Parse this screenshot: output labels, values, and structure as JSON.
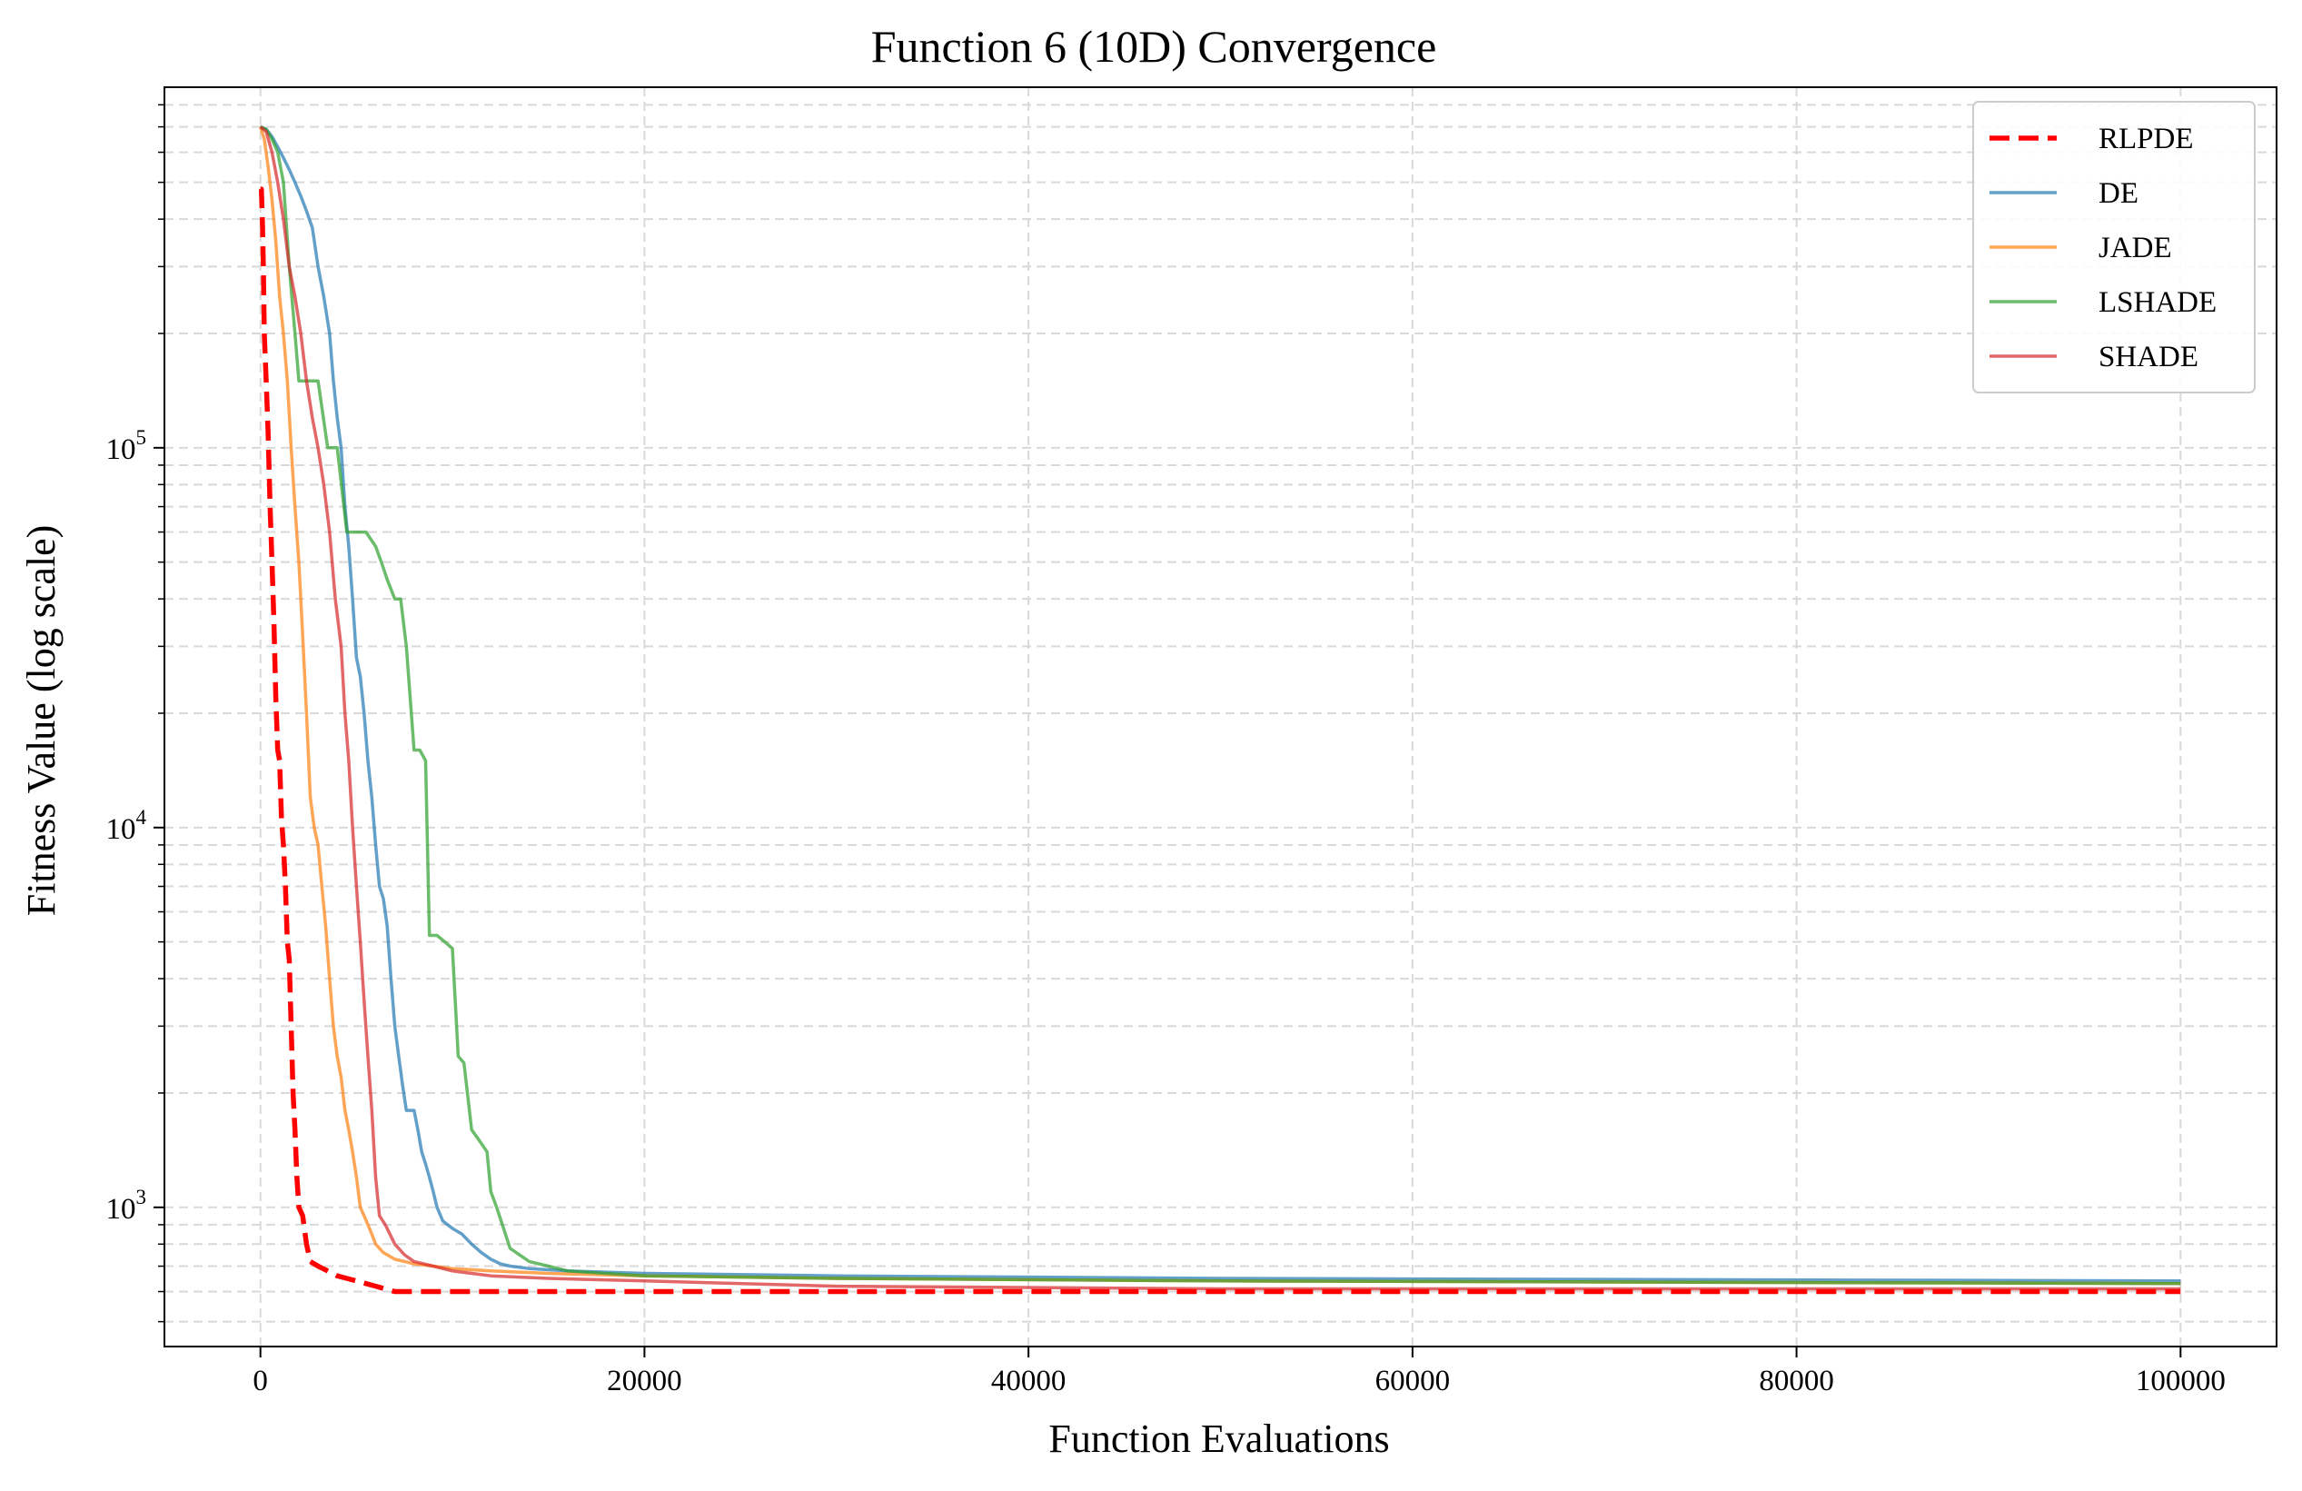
{
  "chart_data": {
    "type": "line",
    "title": "Function 6 (10D) Convergence",
    "xlabel": "Function Evaluations",
    "ylabel": "Fitness Value (log scale)",
    "xlim": [
      -5000,
      105000
    ],
    "ylim": [
      430,
      890000
    ],
    "y_scale": "log",
    "grid": true,
    "legend_position": "top-right",
    "x_ticks": [
      0,
      20000,
      40000,
      60000,
      80000,
      100000
    ],
    "x_tick_labels": [
      "0",
      "20000",
      "40000",
      "60000",
      "80000",
      "100000"
    ],
    "y_ticks": [
      1000,
      10000,
      100000
    ],
    "y_tick_labels": [
      {
        "base": "10",
        "exp": "3"
      },
      {
        "base": "10",
        "exp": "4"
      },
      {
        "base": "10",
        "exp": "5"
      }
    ],
    "series": [
      {
        "name": "RLPDE",
        "color": "#ff0000",
        "dashed": true,
        "x": [
          0,
          50,
          100,
          150,
          200,
          300,
          400,
          500,
          600,
          700,
          800,
          900,
          1000,
          1100,
          1200,
          1300,
          1400,
          1500,
          1600,
          1700,
          1800,
          1900,
          2000,
          2200,
          2400,
          2600,
          2800,
          3000,
          3500,
          4000,
          4500,
          5000,
          6000,
          7000,
          8000,
          10000,
          20000,
          40000,
          60000,
          80000,
          100000
        ],
        "y": [
          480000,
          480000,
          400000,
          300000,
          200000,
          150000,
          110000,
          70000,
          50000,
          35000,
          22000,
          16000,
          15000,
          10500,
          9000,
          7000,
          5000,
          4500,
          3000,
          2000,
          1600,
          1200,
          1000,
          950,
          800,
          720,
          710,
          700,
          680,
          660,
          650,
          640,
          620,
          600,
          600,
          600,
          600,
          600,
          600,
          600,
          600
        ]
      },
      {
        "name": "DE",
        "color": "#1f77b4",
        "dashed": false,
        "x": [
          0,
          300,
          600,
          900,
          1200,
          1500,
          1800,
          2100,
          2400,
          2700,
          3000,
          3300,
          3600,
          3800,
          4000,
          4200,
          4400,
          4600,
          4800,
          5000,
          5200,
          5400,
          5600,
          5800,
          6000,
          6200,
          6400,
          6600,
          6800,
          7000,
          7200,
          7400,
          7600,
          7800,
          8000,
          8200,
          8400,
          8600,
          8800,
          9000,
          9200,
          9500,
          10000,
          10500,
          11000,
          11500,
          12000,
          12500,
          13000,
          14000,
          16000,
          20000,
          30000,
          50000,
          100000
        ],
        "y": [
          700000,
          690000,
          660000,
          620000,
          580000,
          540000,
          500000,
          460000,
          420000,
          380000,
          300000,
          250000,
          200000,
          150000,
          120000,
          100000,
          70000,
          55000,
          40000,
          28000,
          25000,
          20000,
          15000,
          12000,
          9000,
          7000,
          6500,
          5500,
          4000,
          3000,
          2500,
          2100,
          1800,
          1800,
          1800,
          1600,
          1400,
          1300,
          1200,
          1100,
          1000,
          920,
          880,
          850,
          800,
          760,
          730,
          710,
          700,
          690,
          680,
          670,
          660,
          650,
          640
        ]
      },
      {
        "name": "JADE",
        "color": "#ff7f0e",
        "dashed": false,
        "x": [
          0,
          200,
          400,
          600,
          800,
          1000,
          1200,
          1400,
          1600,
          1800,
          2000,
          2200,
          2400,
          2600,
          2800,
          3000,
          3200,
          3400,
          3600,
          3800,
          4000,
          4200,
          4400,
          4600,
          4800,
          5000,
          5200,
          5400,
          5600,
          5800,
          6000,
          6200,
          6400,
          6600,
          6800,
          7000,
          7500,
          8000,
          9000,
          10000,
          12000,
          15000,
          20000,
          30000,
          50000,
          100000
        ],
        "y": [
          700000,
          650000,
          550000,
          450000,
          350000,
          250000,
          200000,
          150000,
          100000,
          70000,
          50000,
          32000,
          20000,
          12000,
          10000,
          9000,
          7000,
          5500,
          4000,
          3000,
          2500,
          2200,
          1800,
          1600,
          1400,
          1200,
          1000,
          950,
          900,
          850,
          800,
          780,
          760,
          750,
          740,
          730,
          720,
          710,
          700,
          690,
          680,
          670,
          660,
          650,
          640,
          630
        ]
      },
      {
        "name": "LSHADE",
        "color": "#2ca02c",
        "dashed": false,
        "x": [
          0,
          300,
          600,
          900,
          1200,
          1500,
          1800,
          2000,
          2500,
          3000,
          3500,
          4000,
          4500,
          5000,
          5500,
          6000,
          6300,
          6600,
          7000,
          7300,
          7600,
          8000,
          8300,
          8600,
          8800,
          9000,
          9200,
          9600,
          10000,
          10300,
          10600,
          11000,
          11400,
          11800,
          12000,
          12300,
          12600,
          13000,
          14000,
          15000,
          16000,
          18000,
          20000,
          30000,
          50000,
          100000
        ],
        "y": [
          700000,
          690000,
          650000,
          600000,
          500000,
          300000,
          200000,
          150000,
          150000,
          150000,
          100000,
          100000,
          60000,
          60000,
          60000,
          55000,
          50000,
          45000,
          40000,
          40000,
          30000,
          16000,
          16000,
          15000,
          5200,
          5200,
          5200,
          5000,
          4800,
          2500,
          2400,
          1600,
          1500,
          1400,
          1100,
          1000,
          900,
          780,
          720,
          700,
          680,
          670,
          660,
          650,
          640,
          630
        ]
      },
      {
        "name": "SHADE",
        "color": "#d62728",
        "dashed": false,
        "x": [
          0,
          300,
          600,
          900,
          1200,
          1500,
          1800,
          2100,
          2400,
          2700,
          3000,
          3300,
          3600,
          3900,
          4200,
          4400,
          4600,
          4800,
          5000,
          5200,
          5400,
          5600,
          5800,
          6000,
          6200,
          6500,
          7000,
          7500,
          8000,
          9000,
          10000,
          12000,
          15000,
          20000,
          30000,
          50000,
          100000
        ],
        "y": [
          700000,
          680000,
          600000,
          500000,
          400000,
          300000,
          250000,
          200000,
          150000,
          120000,
          100000,
          80000,
          60000,
          40000,
          30000,
          20000,
          15000,
          10000,
          7000,
          5000,
          3500,
          2500,
          1800,
          1200,
          950,
          900,
          800,
          750,
          720,
          700,
          680,
          660,
          650,
          640,
          620,
          610,
          610
        ]
      }
    ]
  }
}
